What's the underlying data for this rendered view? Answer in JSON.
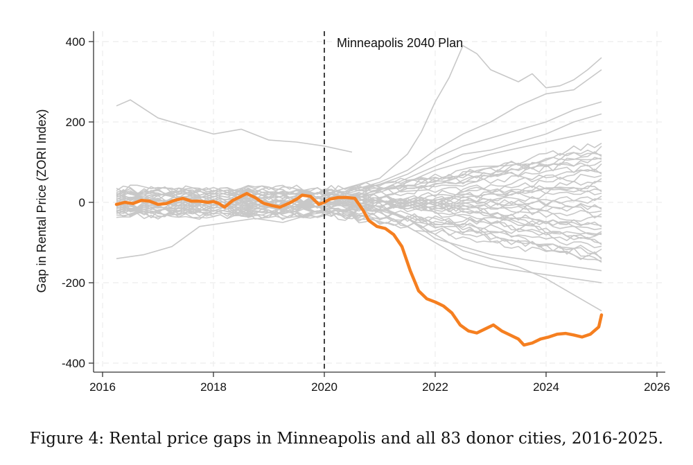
{
  "chart_data": {
    "type": "line",
    "title": "",
    "xlabel": "",
    "ylabel": "Gap in Rental Price (ZORI Index)",
    "xlim": [
      2016,
      2026
    ],
    "ylim": [
      -400,
      400
    ],
    "xticks": [
      "2016",
      "2018",
      "2020",
      "2022",
      "2024",
      "2026"
    ],
    "yticks": [
      "400",
      "200",
      "0",
      "-200",
      "-400"
    ],
    "grid": true,
    "annotation": {
      "text": "Minneapolis 2040 Plan",
      "x": 2020
    },
    "highlight_series": {
      "name": "Minneapolis",
      "color": "#f57f20",
      "points": [
        [
          2016.25,
          -5
        ],
        [
          2016.4,
          0
        ],
        [
          2016.55,
          -3
        ],
        [
          2016.7,
          5
        ],
        [
          2016.85,
          3
        ],
        [
          2017.0,
          -5
        ],
        [
          2017.15,
          -3
        ],
        [
          2017.3,
          5
        ],
        [
          2017.45,
          10
        ],
        [
          2017.6,
          3
        ],
        [
          2017.75,
          3
        ],
        [
          2017.9,
          0
        ],
        [
          2018.0,
          2
        ],
        [
          2018.1,
          -3
        ],
        [
          2018.2,
          -12
        ],
        [
          2018.35,
          5
        ],
        [
          2018.5,
          15
        ],
        [
          2018.6,
          22
        ],
        [
          2018.75,
          12
        ],
        [
          2018.9,
          -2
        ],
        [
          2019.05,
          -8
        ],
        [
          2019.2,
          -12
        ],
        [
          2019.35,
          -3
        ],
        [
          2019.5,
          8
        ],
        [
          2019.6,
          18
        ],
        [
          2019.75,
          15
        ],
        [
          2019.9,
          -5
        ],
        [
          2020.0,
          0
        ],
        [
          2020.1,
          8
        ],
        [
          2020.25,
          12
        ],
        [
          2020.4,
          12
        ],
        [
          2020.55,
          10
        ],
        [
          2020.7,
          -20
        ],
        [
          2020.8,
          -45
        ],
        [
          2020.95,
          -60
        ],
        [
          2021.1,
          -65
        ],
        [
          2021.25,
          -80
        ],
        [
          2021.4,
          -110
        ],
        [
          2021.55,
          -170
        ],
        [
          2021.7,
          -220
        ],
        [
          2021.85,
          -240
        ],
        [
          2022.0,
          -248
        ],
        [
          2022.15,
          -258
        ],
        [
          2022.3,
          -275
        ],
        [
          2022.45,
          -305
        ],
        [
          2022.6,
          -320
        ],
        [
          2022.75,
          -325
        ],
        [
          2022.9,
          -315
        ],
        [
          2023.05,
          -305
        ],
        [
          2023.2,
          -320
        ],
        [
          2023.35,
          -330
        ],
        [
          2023.5,
          -340
        ],
        [
          2023.6,
          -355
        ],
        [
          2023.75,
          -350
        ],
        [
          2023.9,
          -340
        ],
        [
          2024.05,
          -335
        ],
        [
          2024.2,
          -328
        ],
        [
          2024.35,
          -326
        ],
        [
          2024.5,
          -330
        ],
        [
          2024.65,
          -335
        ],
        [
          2024.8,
          -328
        ],
        [
          2024.95,
          -310
        ],
        [
          2025.0,
          -280
        ]
      ]
    },
    "donor_series_count": 83,
    "donor_color": "#c8c8c8",
    "donor_series": [
      {
        "points": [
          [
            2016.25,
            240
          ],
          [
            2016.5,
            255
          ],
          [
            2017.0,
            210
          ],
          [
            2017.5,
            190
          ],
          [
            2018.0,
            170
          ],
          [
            2018.5,
            182
          ],
          [
            2019.0,
            155
          ],
          [
            2019.5,
            150
          ],
          [
            2020.0,
            140
          ],
          [
            2020.5,
            125
          ]
        ]
      },
      {
        "points": [
          [
            2016.25,
            -140
          ],
          [
            2016.75,
            -130
          ],
          [
            2017.25,
            -110
          ],
          [
            2017.75,
            -60
          ],
          [
            2018.25,
            -50
          ],
          [
            2018.75,
            -40
          ],
          [
            2019.25,
            -50
          ],
          [
            2019.75,
            -30
          ],
          [
            2020.25,
            -20
          ],
          [
            2020.75,
            -15
          ]
        ]
      },
      {
        "points": [
          [
            2020.0,
            20
          ],
          [
            2020.5,
            40
          ],
          [
            2021.0,
            60
          ],
          [
            2021.5,
            120
          ],
          [
            2021.75,
            175
          ],
          [
            2022.0,
            250
          ],
          [
            2022.25,
            310
          ],
          [
            2022.5,
            390
          ],
          [
            2022.75,
            370
          ],
          [
            2023.0,
            330
          ],
          [
            2023.5,
            300
          ],
          [
            2023.75,
            320
          ],
          [
            2024.0,
            285
          ],
          [
            2024.25,
            290
          ],
          [
            2024.5,
            305
          ],
          [
            2024.75,
            330
          ],
          [
            2025.0,
            360
          ]
        ]
      },
      {
        "points": [
          [
            2020.0,
            15
          ],
          [
            2020.5,
            30
          ],
          [
            2021.0,
            50
          ],
          [
            2021.5,
            80
          ],
          [
            2022.0,
            130
          ],
          [
            2022.5,
            170
          ],
          [
            2023.0,
            200
          ],
          [
            2023.5,
            240
          ],
          [
            2024.0,
            270
          ],
          [
            2024.5,
            280
          ],
          [
            2025.0,
            330
          ]
        ]
      },
      {
        "points": [
          [
            2020.0,
            10
          ],
          [
            2020.5,
            25
          ],
          [
            2021.0,
            45
          ],
          [
            2021.5,
            70
          ],
          [
            2022.0,
            110
          ],
          [
            2022.5,
            140
          ],
          [
            2023.0,
            160
          ],
          [
            2023.5,
            180
          ],
          [
            2024.0,
            200
          ],
          [
            2024.5,
            230
          ],
          [
            2025.0,
            250
          ]
        ]
      },
      {
        "points": [
          [
            2020.0,
            5
          ],
          [
            2020.5,
            15
          ],
          [
            2021.0,
            30
          ],
          [
            2021.5,
            60
          ],
          [
            2022.0,
            90
          ],
          [
            2022.5,
            120
          ],
          [
            2023.0,
            130
          ],
          [
            2023.5,
            150
          ],
          [
            2024.0,
            170
          ],
          [
            2024.5,
            200
          ],
          [
            2025.0,
            220
          ]
        ]
      },
      {
        "points": [
          [
            2020.0,
            5
          ],
          [
            2020.5,
            10
          ],
          [
            2021.0,
            25
          ],
          [
            2021.5,
            50
          ],
          [
            2022.0,
            80
          ],
          [
            2022.5,
            100
          ],
          [
            2023.0,
            120
          ],
          [
            2023.5,
            135
          ],
          [
            2024.0,
            150
          ],
          [
            2024.5,
            165
          ],
          [
            2025.0,
            180
          ]
        ]
      },
      {
        "points": [
          [
            2020.0,
            0
          ],
          [
            2020.5,
            0
          ],
          [
            2021.0,
            -10
          ],
          [
            2021.5,
            -40
          ],
          [
            2022.0,
            -80
          ],
          [
            2022.5,
            -120
          ],
          [
            2023.0,
            -140
          ],
          [
            2023.5,
            -160
          ],
          [
            2024.0,
            -190
          ],
          [
            2024.5,
            -230
          ],
          [
            2025.0,
            -270
          ]
        ]
      },
      {
        "points": [
          [
            2020.0,
            -5
          ],
          [
            2020.5,
            -10
          ],
          [
            2021.0,
            -25
          ],
          [
            2021.5,
            -60
          ],
          [
            2022.0,
            -100
          ],
          [
            2022.5,
            -140
          ],
          [
            2023.0,
            -160
          ],
          [
            2023.5,
            -170
          ],
          [
            2024.0,
            -180
          ],
          [
            2024.5,
            -190
          ],
          [
            2025.0,
            -200
          ]
        ]
      },
      {
        "points": [
          [
            2020.0,
            0
          ],
          [
            2020.5,
            -5
          ],
          [
            2021.0,
            -20
          ],
          [
            2021.5,
            -40
          ],
          [
            2022.0,
            -90
          ],
          [
            2022.5,
            -110
          ],
          [
            2023.0,
            -130
          ],
          [
            2023.5,
            -140
          ],
          [
            2024.0,
            -150
          ],
          [
            2024.5,
            -160
          ],
          [
            2025.0,
            -170
          ]
        ]
      }
    ]
  },
  "caption": "Figure 4: Rental price gaps in Minneapolis and all 83 donor cities, 2016-2025."
}
